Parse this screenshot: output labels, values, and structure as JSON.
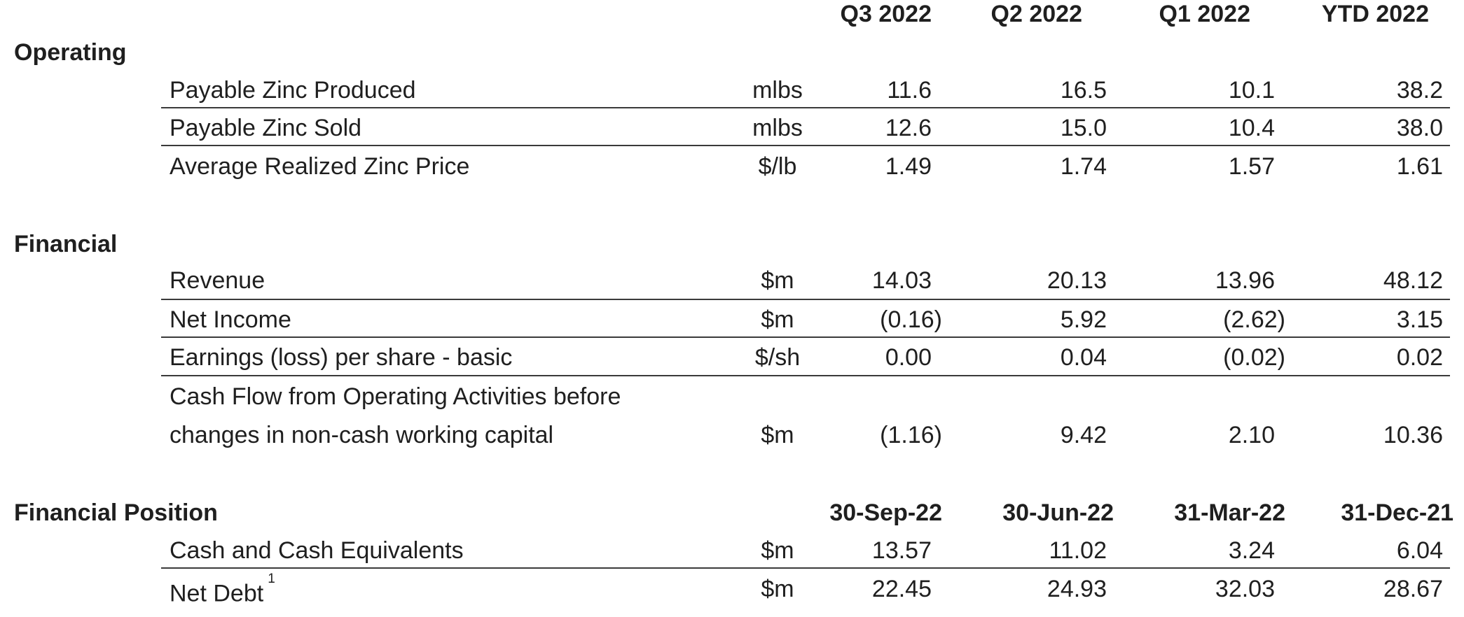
{
  "header": {
    "columns": [
      "Q3 2022",
      "Q2 2022",
      "Q1 2022",
      "YTD 2022"
    ]
  },
  "operating": {
    "title": "Operating",
    "rows": [
      {
        "label": "Payable Zinc Produced",
        "unit": "mlbs",
        "values": [
          "11.6",
          "16.5",
          "10.1",
          "38.2"
        ]
      },
      {
        "label": "Payable Zinc Sold",
        "unit": "mlbs",
        "values": [
          "12.6",
          "15.0",
          "10.4",
          "38.0"
        ]
      },
      {
        "label": "Average Realized Zinc Price",
        "unit": "$/lb",
        "values": [
          "1.49",
          "1.74",
          "1.57",
          "1.61"
        ]
      }
    ]
  },
  "financial": {
    "title": "Financial",
    "rows": [
      {
        "label": "Revenue",
        "unit": "$m",
        "values": [
          "14.03",
          "20.13",
          "13.96",
          "48.12"
        ]
      },
      {
        "label": "Net Income",
        "unit": "$m",
        "values": [
          "(0.16)",
          "5.92",
          "(2.62)",
          "3.15"
        ]
      },
      {
        "label": "Earnings (loss) per share - basic",
        "unit": "$/sh",
        "values": [
          "0.00",
          "0.04",
          "(0.02)",
          "0.02"
        ]
      },
      {
        "label_line1": "Cash Flow from Operating Activities before",
        "label_line2": "changes in non-cash working capital",
        "unit": "$m",
        "values": [
          "(1.16)",
          "9.42",
          "2.10",
          "10.36"
        ]
      }
    ]
  },
  "position": {
    "title": "Financial Position",
    "columns": [
      "30-Sep-22",
      "30-Jun-22",
      "31-Mar-22",
      "31-Dec-21"
    ],
    "rows": [
      {
        "label": "Cash and Cash Equivalents",
        "unit": "$m",
        "values": [
          "13.57",
          "11.02",
          "3.24",
          "6.04"
        ]
      },
      {
        "label": "Net Debt",
        "footnote": "1",
        "unit": "$m",
        "values": [
          "22.45",
          "24.93",
          "32.03",
          "28.67"
        ]
      }
    ]
  }
}
